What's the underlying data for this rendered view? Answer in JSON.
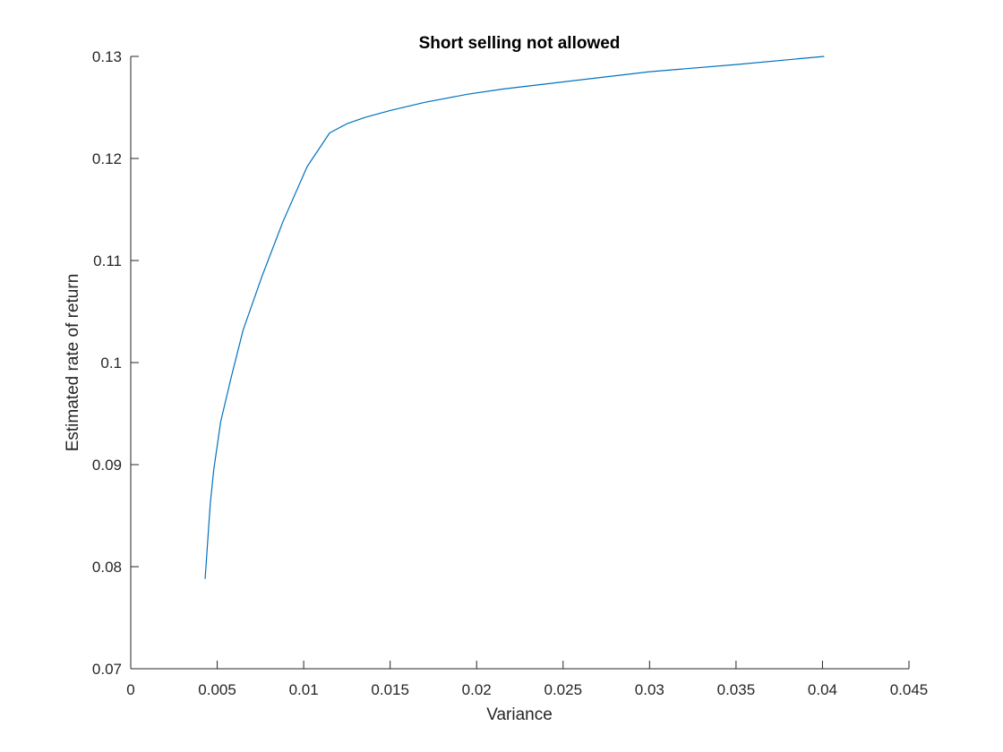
{
  "chart_data": {
    "type": "line",
    "title": "Short selling not allowed",
    "xlabel": "Variance",
    "ylabel": "Estimated rate of return",
    "xlim": [
      0,
      0.045
    ],
    "ylim": [
      0.07,
      0.13
    ],
    "xticks": [
      0,
      0.005,
      0.01,
      0.015,
      0.02,
      0.025,
      0.03,
      0.035,
      0.04,
      0.045
    ],
    "xtick_labels": [
      "0",
      "0.005",
      "0.01",
      "0.015",
      "0.02",
      "0.025",
      "0.03",
      "0.035",
      "0.04",
      "0.045"
    ],
    "yticks": [
      0.07,
      0.08,
      0.09,
      0.1,
      0.11,
      0.12,
      0.13
    ],
    "ytick_labels": [
      "0.07",
      "0.08",
      "0.09",
      "0.1",
      "0.11",
      "0.12",
      "0.13"
    ],
    "grid": false,
    "legend": "none",
    "line_color": "#0072BD",
    "series": [
      {
        "x": [
          0.0043,
          0.00445,
          0.0046,
          0.0048,
          0.0052,
          0.0058,
          0.0065,
          0.0076,
          0.0088,
          0.0102,
          0.0115,
          0.0125,
          0.0135,
          0.015,
          0.017,
          0.0195,
          0.0215,
          0.025,
          0.03,
          0.035,
          0.0401
        ],
        "y": [
          0.0788,
          0.0825,
          0.0862,
          0.0895,
          0.0942,
          0.0985,
          0.1032,
          0.1085,
          0.1138,
          0.1192,
          0.1225,
          0.1234,
          0.124,
          0.1247,
          0.1255,
          0.1263,
          0.1268,
          0.1275,
          0.1285,
          0.1292,
          0.13
        ]
      }
    ]
  }
}
